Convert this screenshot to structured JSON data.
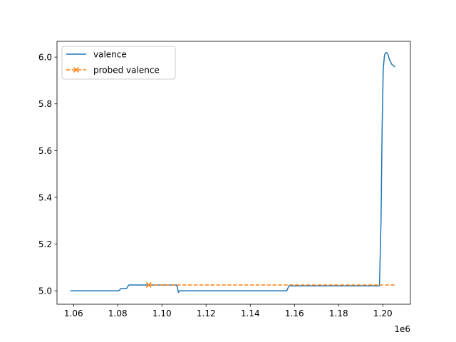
{
  "chart_data": {
    "type": "line",
    "title": "",
    "xlabel": "",
    "ylabel": "",
    "x_offset_label": "1e6",
    "xlim": [
      1.0525,
      1.2125
    ],
    "ylim": [
      4.9425,
      6.0675
    ],
    "x_ticks": [
      1.06,
      1.08,
      1.1,
      1.12,
      1.14,
      1.16,
      1.18,
      1.2
    ],
    "x_tick_labels": [
      "1.06",
      "1.08",
      "1.10",
      "1.12",
      "1.14",
      "1.16",
      "1.18",
      "1.20"
    ],
    "y_ticks": [
      5.0,
      5.2,
      5.4,
      5.6,
      5.8,
      6.0
    ],
    "y_tick_labels": [
      "5.0",
      "5.2",
      "5.4",
      "5.6",
      "5.8",
      "6.0"
    ],
    "legend_position": "upper-left",
    "series": [
      {
        "name": "valence",
        "style": "solid",
        "color": "#1f77b4",
        "points": [
          [
            1.0586,
            5.0
          ],
          [
            1.0805,
            5.0
          ],
          [
            1.0815,
            5.01
          ],
          [
            1.084,
            5.01
          ],
          [
            1.085,
            5.025
          ],
          [
            1.1065,
            5.025
          ],
          [
            1.107,
            5.015
          ],
          [
            1.1075,
            4.993
          ],
          [
            1.108,
            5.0
          ],
          [
            1.1565,
            5.0
          ],
          [
            1.1575,
            5.021
          ],
          [
            1.1985,
            5.021
          ],
          [
            1.1992,
            5.3
          ],
          [
            1.1997,
            5.7
          ],
          [
            1.2002,
            5.95
          ],
          [
            1.2008,
            6.01
          ],
          [
            1.2015,
            6.02
          ],
          [
            1.2022,
            6.015
          ],
          [
            1.203,
            5.99
          ],
          [
            1.204,
            5.97
          ],
          [
            1.2055,
            5.958
          ]
        ]
      },
      {
        "name": "probed valence",
        "style": "dashed",
        "color": "#ff7f0e",
        "marker": "x",
        "points": [
          [
            1.094,
            5.025
          ],
          [
            1.2055,
            5.025
          ]
        ],
        "marker_points": [
          [
            1.094,
            5.025
          ]
        ]
      }
    ]
  }
}
